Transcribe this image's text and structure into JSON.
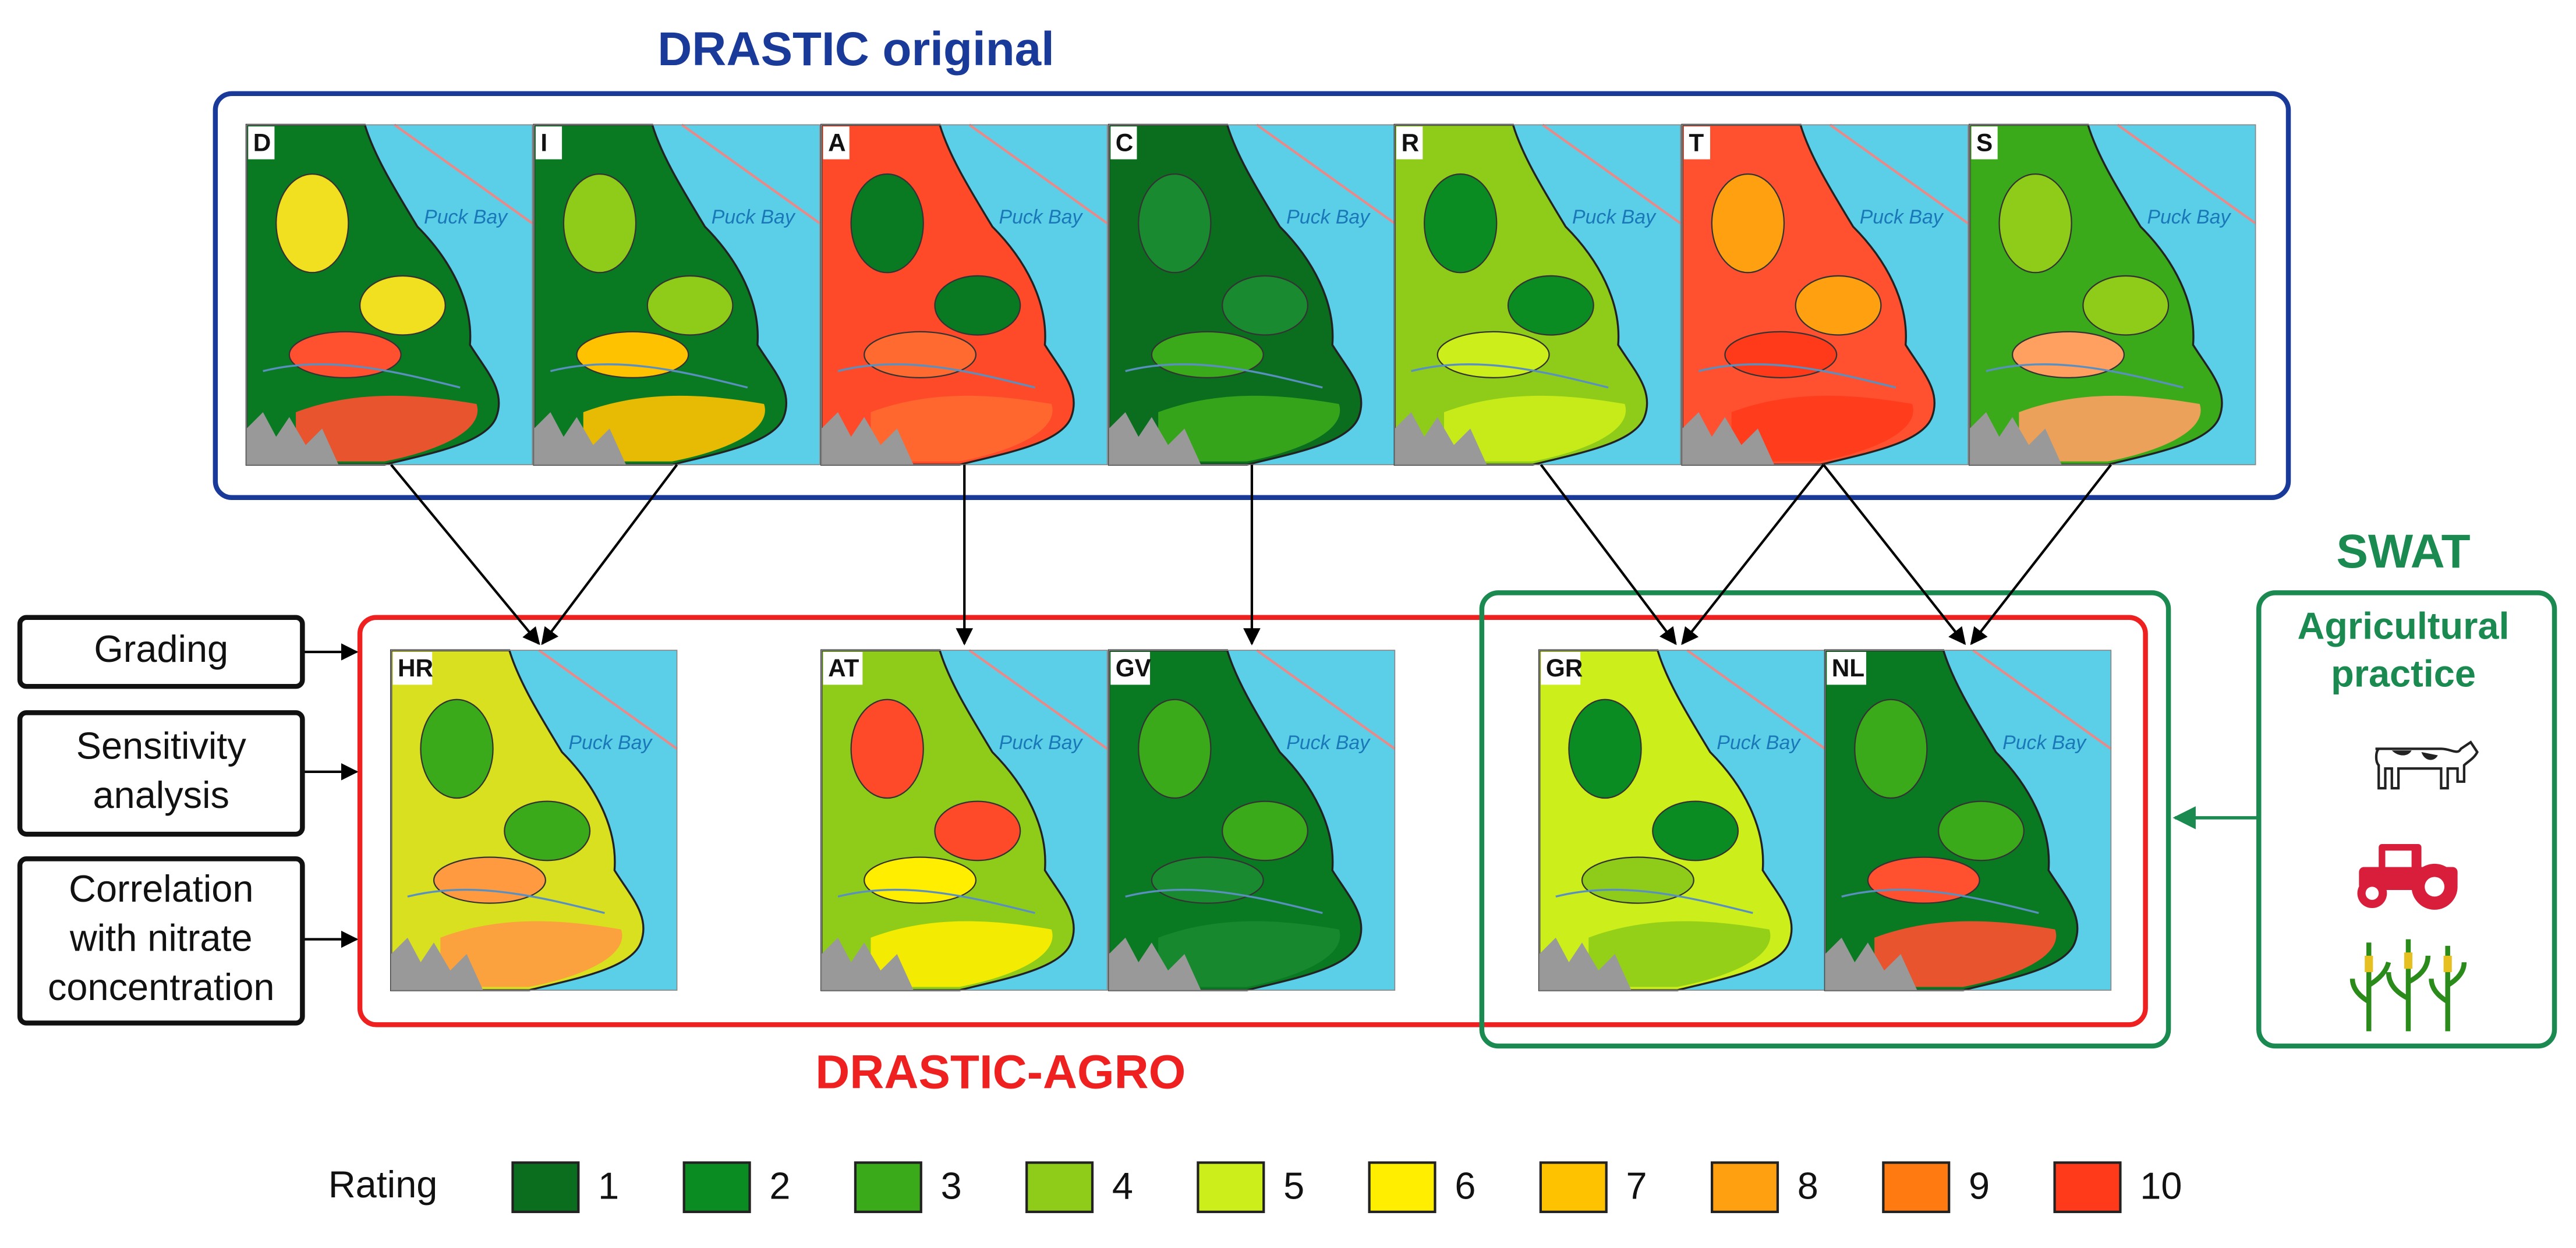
{
  "drastic_original": {
    "title": "DRASTIC original",
    "panels": [
      {
        "label": "D",
        "place": "Puck Bay",
        "colors": [
          "#0a7a22",
          "#f0e020",
          "#ff5030"
        ]
      },
      {
        "label": "I",
        "place": "Puck Bay",
        "colors": [
          "#0a7a22",
          "#8fcc1a",
          "#ffc200"
        ]
      },
      {
        "label": "A",
        "place": "Puck Bay",
        "colors": [
          "#ff4a2a",
          "#0a7a22",
          "#ff6a30"
        ]
      },
      {
        "label": "C",
        "place": "Puck Bay",
        "colors": [
          "#0a6e1e",
          "#1a8a30",
          "#3aaa1a"
        ]
      },
      {
        "label": "R",
        "place": "Puck Bay",
        "colors": [
          "#8fcc1a",
          "#0a8c23",
          "#ccee1a"
        ]
      },
      {
        "label": "T",
        "place": "Puck Bay",
        "colors": [
          "#ff5030",
          "#ffa010",
          "#ff3a1a"
        ]
      },
      {
        "label": "S",
        "place": "Puck Bay",
        "colors": [
          "#3aaa1a",
          "#8fcc1a",
          "#ffa060"
        ]
      }
    ]
  },
  "drastic_agro": {
    "title": "DRASTIC-AGRO",
    "panels": [
      {
        "label": "HR",
        "place": "Puck Bay",
        "colors": [
          "#d8e020",
          "#3aaa1a",
          "#ff9a40"
        ]
      },
      {
        "label": "AT",
        "place": "Puck Bay",
        "colors": [
          "#8fcc1a",
          "#ff4a2a",
          "#ffee00"
        ]
      },
      {
        "label": "GV",
        "place": "Puck Bay",
        "colors": [
          "#0a7a22",
          "#3aaa1a",
          "#1a8a30"
        ]
      },
      {
        "label": "GR",
        "place": "Puck Bay",
        "colors": [
          "#ccee1a",
          "#0a8c23",
          "#8fcc1a"
        ]
      },
      {
        "label": "NL",
        "place": "Puck Bay",
        "colors": [
          "#0a7a22",
          "#3aaa1a",
          "#ff5030"
        ]
      }
    ]
  },
  "inputs": [
    {
      "lines": [
        "Grading"
      ]
    },
    {
      "lines": [
        "Sensitivity",
        "analysis"
      ]
    },
    {
      "lines": [
        "Correlation",
        "with nitrate",
        "concentration"
      ]
    }
  ],
  "swat": {
    "title": "SWAT",
    "subtitle": [
      "Agricultural",
      "practice"
    ]
  },
  "legend": {
    "title": "Rating",
    "items": [
      {
        "value": 1,
        "color": "#0a6e1e"
      },
      {
        "value": 2,
        "color": "#0a8c23"
      },
      {
        "value": 3,
        "color": "#3aaa1a"
      },
      {
        "value": 4,
        "color": "#8fcc1a"
      },
      {
        "value": 5,
        "color": "#ccee1a"
      },
      {
        "value": 6,
        "color": "#ffee00"
      },
      {
        "value": 7,
        "color": "#ffc200"
      },
      {
        "value": 8,
        "color": "#ffa010"
      },
      {
        "value": 9,
        "color": "#ff7a10"
      },
      {
        "value": 10,
        "color": "#ff3a1a"
      }
    ]
  }
}
